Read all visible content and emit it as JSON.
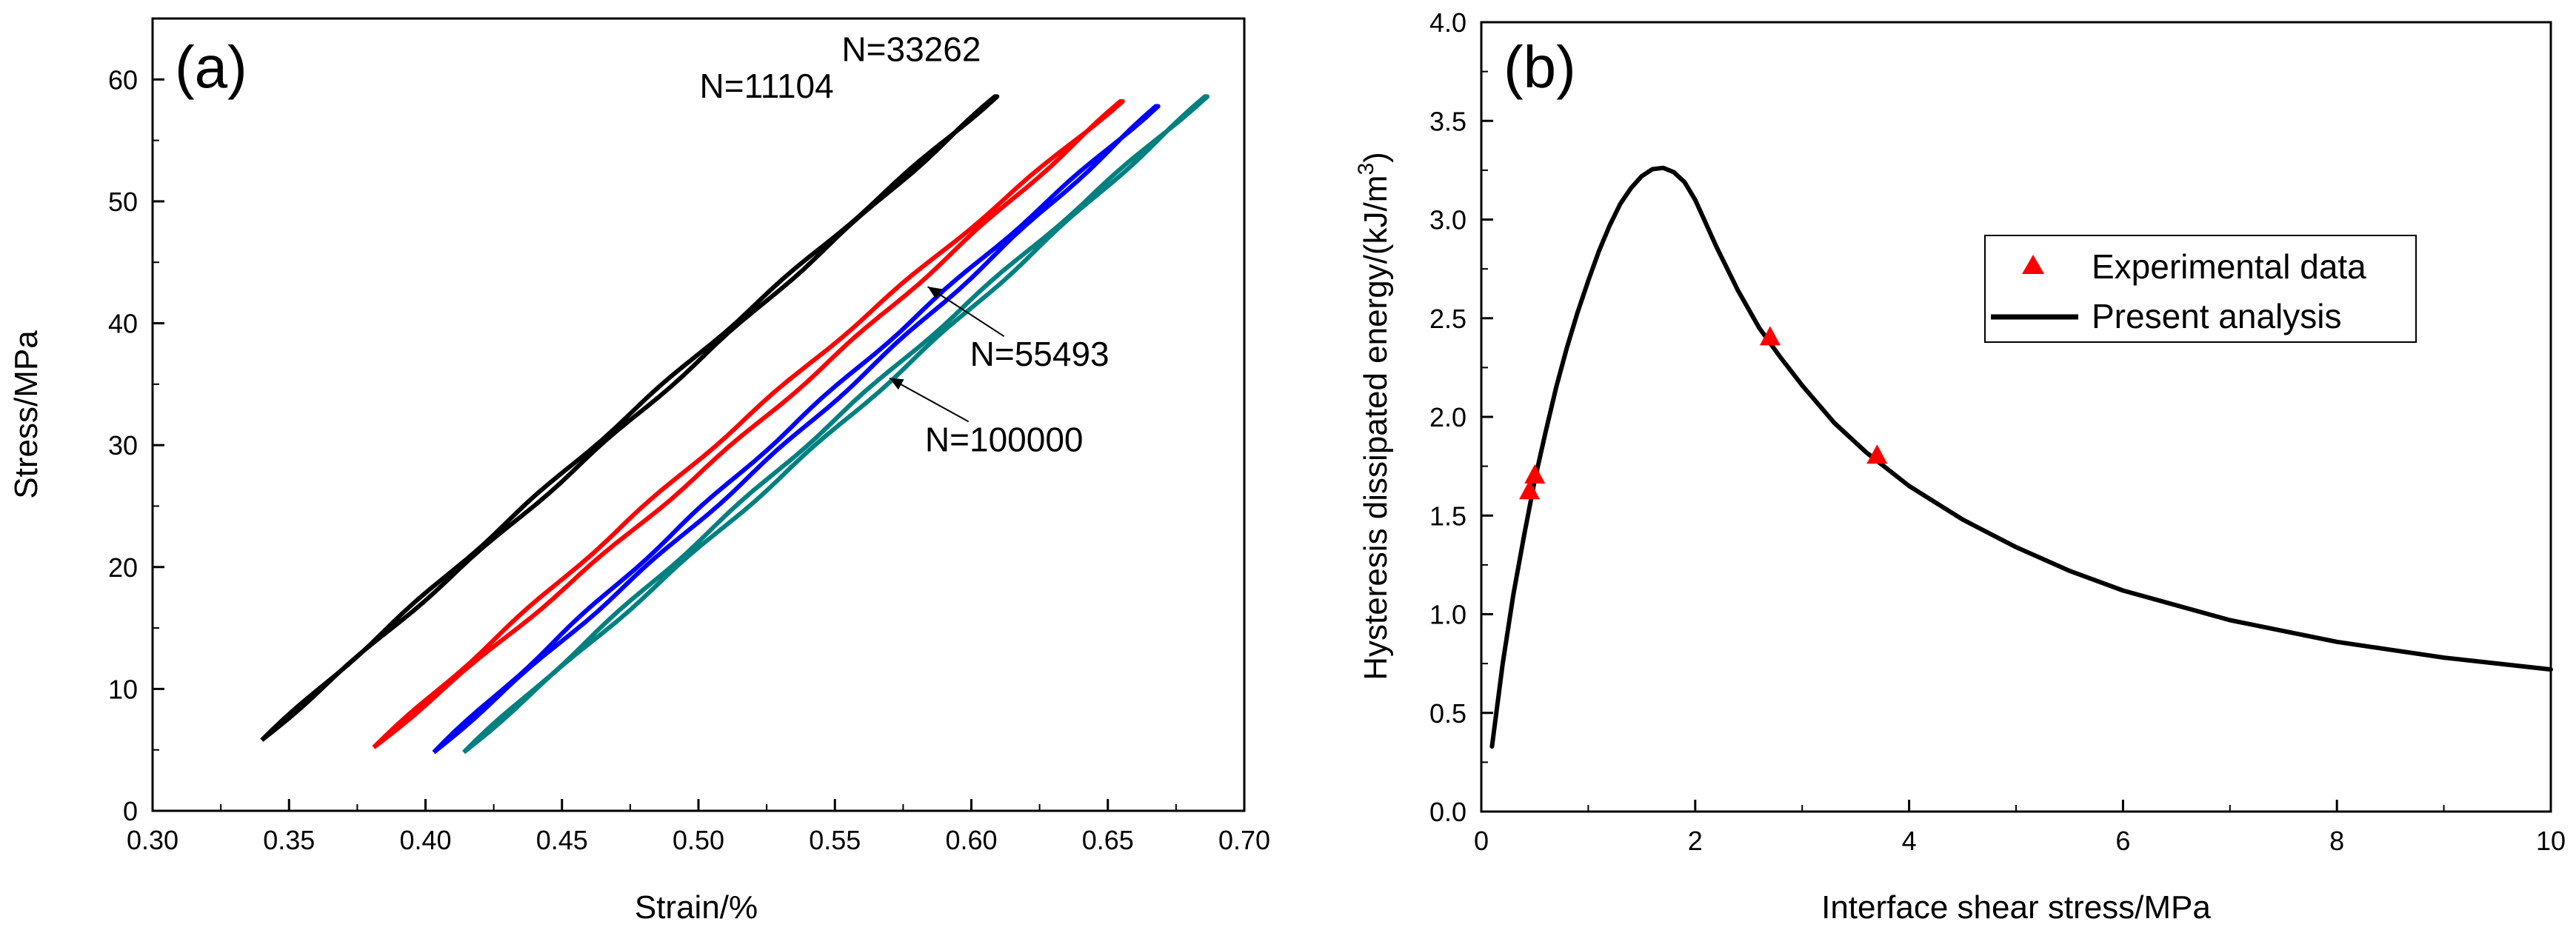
{
  "chart_data": [
    {
      "panel": "(a)",
      "type": "line",
      "xlabel": "Strain/%",
      "ylabel": "Stress/MPa",
      "xlim": [
        0.3,
        0.7
      ],
      "ylim": [
        0,
        65
      ],
      "xticks": [
        "0.30",
        "0.35",
        "0.40",
        "0.45",
        "0.50",
        "0.55",
        "0.60",
        "0.65",
        "0.70"
      ],
      "yticks": [
        "0",
        "10",
        "20",
        "30",
        "40",
        "50",
        "60"
      ],
      "series": [
        {
          "name": "N=11104",
          "color": "#000000",
          "loop": {
            "start": [
              0.34,
              5.8
            ],
            "end": [
              0.609,
              58.6
            ],
            "bulge": 0.003
          }
        },
        {
          "name": "N=33262",
          "color": "#ff0000",
          "loop": {
            "start": [
              0.381,
              5.2
            ],
            "end": [
              0.655,
              58.2
            ],
            "bulge": 0.0065
          }
        },
        {
          "name": "N=55493",
          "color": "#0000ff",
          "loop": {
            "start": [
              0.403,
              4.8
            ],
            "end": [
              0.668,
              57.8
            ],
            "bulge": 0.005
          }
        },
        {
          "name": "N=100000",
          "color": "#008080",
          "loop": {
            "start": [
              0.414,
              4.8
            ],
            "end": [
              0.686,
              58.6
            ],
            "bulge": 0.004
          }
        }
      ],
      "annotations": [
        {
          "text": "N=11104",
          "x": 0.525,
          "y": 58.5
        },
        {
          "text": "N=33262",
          "x": 0.578,
          "y": 61.5
        },
        {
          "text": "N=55493",
          "x": 0.625,
          "y": 36.5,
          "arrow_to": [
            0.584,
            43.0
          ]
        },
        {
          "text": "N=100000",
          "x": 0.612,
          "y": 29.5,
          "arrow_to": [
            0.57,
            35.5
          ]
        }
      ]
    },
    {
      "panel": "(b)",
      "type": "line",
      "xlabel": "Interface shear stress/MPa",
      "ylabel_main": "Hysteresis dissipated energy/(kJ/m",
      "ylabel_sup": "3",
      "ylabel_tail": ")",
      "xlim": [
        0,
        10
      ],
      "ylim": [
        0,
        4.0
      ],
      "xticks": [
        "0",
        "2",
        "4",
        "6",
        "8",
        "10"
      ],
      "yticks": [
        "0.0",
        "0.5",
        "1.0",
        "1.5",
        "2.0",
        "2.5",
        "3.0",
        "3.5",
        "4.0"
      ],
      "series": [
        {
          "name": "Experimental data",
          "style": "markers",
          "marker": "triangle",
          "color": "#ff0000",
          "x": [
            0.45,
            0.5,
            2.7,
            3.7
          ],
          "y": [
            1.62,
            1.7,
            2.4,
            1.8
          ]
        },
        {
          "name": "Present analysis",
          "style": "line",
          "color": "#000000",
          "x": [
            0.1,
            0.2,
            0.3,
            0.4,
            0.5,
            0.6,
            0.7,
            0.8,
            0.9,
            1.0,
            1.1,
            1.2,
            1.3,
            1.4,
            1.5,
            1.6,
            1.7,
            1.8,
            1.9,
            2.0,
            2.2,
            2.4,
            2.6,
            2.8,
            3.0,
            3.3,
            3.6,
            4.0,
            4.5,
            5.0,
            5.5,
            6.0,
            7.0,
            8.0,
            9.0,
            10.0
          ],
          "y": [
            0.33,
            0.75,
            1.1,
            1.4,
            1.68,
            1.92,
            2.15,
            2.35,
            2.53,
            2.69,
            2.84,
            2.97,
            3.08,
            3.16,
            3.22,
            3.255,
            3.262,
            3.24,
            3.19,
            3.1,
            2.86,
            2.64,
            2.45,
            2.3,
            2.16,
            1.97,
            1.82,
            1.65,
            1.48,
            1.34,
            1.22,
            1.12,
            0.97,
            0.86,
            0.78,
            0.72
          ]
        }
      ],
      "legend": {
        "position": "center-right",
        "entries": [
          "Experimental data",
          "Present analysis"
        ]
      }
    }
  ]
}
